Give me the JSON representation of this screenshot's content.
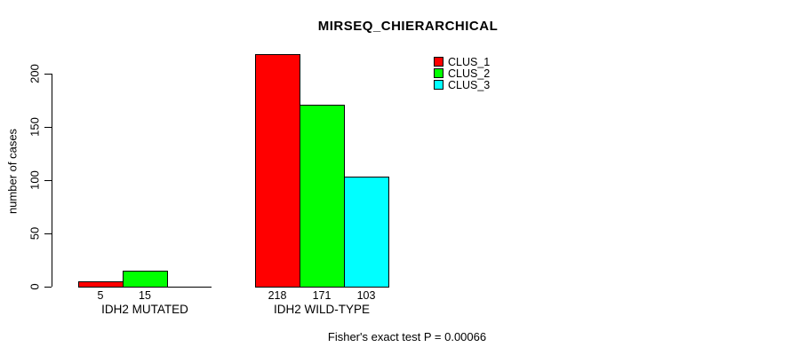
{
  "chart_data": {
    "type": "bar",
    "title": "MIRSEQ_CHIERARCHICAL",
    "ylabel": "number of cases",
    "ylim": [
      0,
      218
    ],
    "yticks": [
      0,
      50,
      100,
      150,
      200
    ],
    "grid": false,
    "legend_position": "top-right",
    "categories": [
      "IDH2 MUTATED",
      "IDH2 WILD-TYPE"
    ],
    "series": [
      {
        "name": "CLUS_1",
        "color": "#ff0000",
        "values": [
          5,
          218
        ]
      },
      {
        "name": "CLUS_2",
        "color": "#00ff00",
        "values": [
          15,
          171
        ]
      },
      {
        "name": "CLUS_3",
        "color": "#00ffff",
        "values": [
          0,
          103
        ]
      }
    ],
    "bar_value_labels": [
      [
        "5",
        "15",
        ""
      ],
      [
        "218",
        "171",
        "103"
      ]
    ],
    "footnote": "Fisher's exact test P = 0.00066"
  }
}
